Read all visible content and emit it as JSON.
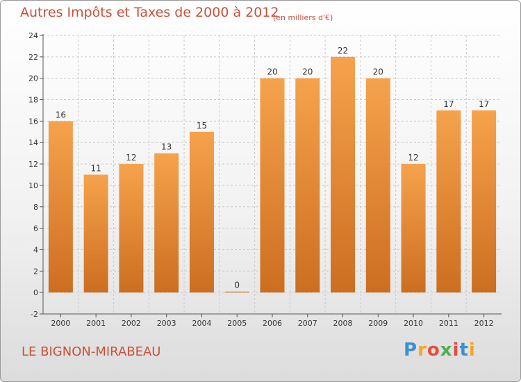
{
  "header": {
    "title": "Autres Impôts et Taxes de 2000 à 2012",
    "unit_note": "(en milliers d'€)"
  },
  "footer": {
    "place": "LE BIGNON-MIRABEAU",
    "logo_text": "Proxiti",
    "logo_colors": [
      "#3a8fd6",
      "#f5a623",
      "#e84b3c",
      "#4caf50",
      "#e84b3c",
      "#3a8fd6",
      "#f5a623"
    ]
  },
  "colors": {
    "bar_top": "#f6a24c",
    "bar_bottom": "#cc6e20",
    "axis": "#555555",
    "grid": "#c8c8c8",
    "text": "#333333",
    "accent": "#c8503a"
  },
  "chart_data": {
    "type": "bar",
    "title": "Autres Impôts et Taxes de 2000 à 2012",
    "categories": [
      "2000",
      "2001",
      "2002",
      "2003",
      "2004",
      "2005",
      "2006",
      "2007",
      "2008",
      "2009",
      "2010",
      "2011",
      "2012"
    ],
    "values": [
      16,
      11,
      12,
      13,
      15,
      0,
      20,
      20,
      22,
      20,
      12,
      17,
      17
    ],
    "value_labels": [
      "16",
      "11",
      "12",
      "13",
      "15",
      "0",
      "20",
      "20",
      "22",
      "20",
      "12",
      "17",
      "17"
    ],
    "yticks": [
      "-2",
      "0",
      "2",
      "4",
      "6",
      "8",
      "10",
      "12",
      "14",
      "16",
      "18",
      "20",
      "22",
      "24"
    ],
    "ylim": [
      -2,
      24
    ],
    "grid": true
  }
}
